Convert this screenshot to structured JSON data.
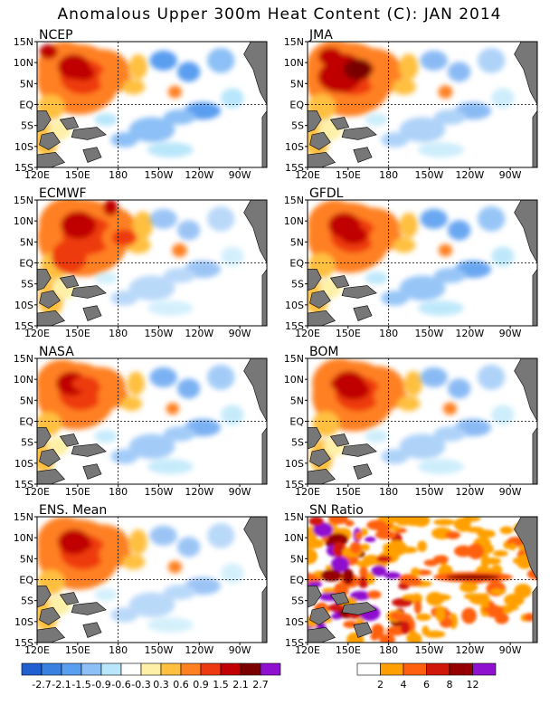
{
  "title": "Anomalous Upper 300m Heat Content (C): JAN 2014",
  "lat_labels": [
    "15N",
    "10N",
    "5N",
    "EQ",
    "5S",
    "10S",
    "15S"
  ],
  "lon_labels": [
    "120E",
    "150E",
    "180",
    "150W",
    "120W",
    "90W"
  ],
  "panels": [
    {
      "id": "ncep",
      "name": "NCEP"
    },
    {
      "id": "jma",
      "name": "JMA"
    },
    {
      "id": "ecmwf",
      "name": "ECMWF"
    },
    {
      "id": "gfdl",
      "name": "GFDL"
    },
    {
      "id": "nasa",
      "name": "NASA"
    },
    {
      "id": "bom",
      "name": "BOM"
    },
    {
      "id": "ens",
      "name": "ENS. Mean"
    },
    {
      "id": "sn",
      "name": "SN Ratio"
    }
  ],
  "colorbar_anom": {
    "colors": [
      "#1f5fd0",
      "#3a80e0",
      "#5a9ef0",
      "#8cc0f6",
      "#b8e6fa",
      "#ffffff",
      "#fff0a8",
      "#ffc040",
      "#ff8020",
      "#ee3a10",
      "#c00000",
      "#7a0000",
      "#9010d0"
    ],
    "labels": [
      "-2.7",
      "-2.1",
      "-1.5",
      "-0.9",
      "-0.6",
      "-0.3",
      "0.3",
      "0.6",
      "0.9",
      "1.5",
      "2.1",
      "2.7"
    ]
  },
  "colorbar_sn": {
    "colors": [
      "#ffffff",
      "#ffa000",
      "#ff6010",
      "#d01808",
      "#960000",
      "#9010d0"
    ],
    "labels": [
      "2",
      "4",
      "6",
      "8",
      "12"
    ]
  }
}
